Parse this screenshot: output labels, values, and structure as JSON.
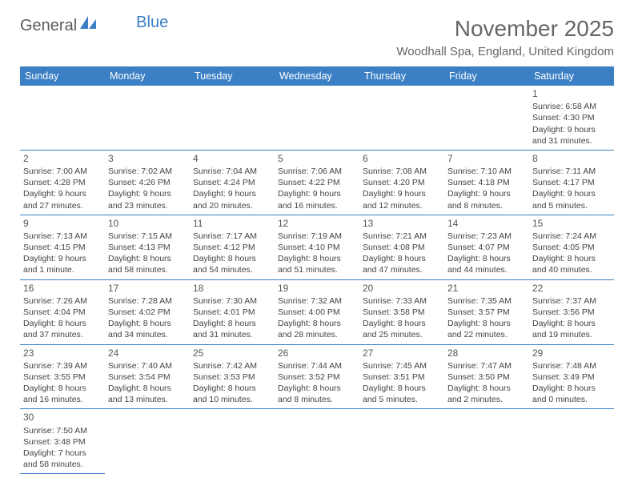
{
  "logo": {
    "text1": "General",
    "text2": "Blue"
  },
  "title": "November 2025",
  "location": "Woodhall Spa, England, United Kingdom",
  "colors": {
    "header_bg": "#3b7fc4",
    "border": "#3b7fc4"
  },
  "days_of_week": [
    "Sunday",
    "Monday",
    "Tuesday",
    "Wednesday",
    "Thursday",
    "Friday",
    "Saturday"
  ],
  "weeks": [
    [
      null,
      null,
      null,
      null,
      null,
      null,
      {
        "n": "1",
        "sunrise": "Sunrise: 6:58 AM",
        "sunset": "Sunset: 4:30 PM",
        "dl": "Daylight: 9 hours and 31 minutes."
      }
    ],
    [
      {
        "n": "2",
        "sunrise": "Sunrise: 7:00 AM",
        "sunset": "Sunset: 4:28 PM",
        "dl": "Daylight: 9 hours and 27 minutes."
      },
      {
        "n": "3",
        "sunrise": "Sunrise: 7:02 AM",
        "sunset": "Sunset: 4:26 PM",
        "dl": "Daylight: 9 hours and 23 minutes."
      },
      {
        "n": "4",
        "sunrise": "Sunrise: 7:04 AM",
        "sunset": "Sunset: 4:24 PM",
        "dl": "Daylight: 9 hours and 20 minutes."
      },
      {
        "n": "5",
        "sunrise": "Sunrise: 7:06 AM",
        "sunset": "Sunset: 4:22 PM",
        "dl": "Daylight: 9 hours and 16 minutes."
      },
      {
        "n": "6",
        "sunrise": "Sunrise: 7:08 AM",
        "sunset": "Sunset: 4:20 PM",
        "dl": "Daylight: 9 hours and 12 minutes."
      },
      {
        "n": "7",
        "sunrise": "Sunrise: 7:10 AM",
        "sunset": "Sunset: 4:18 PM",
        "dl": "Daylight: 9 hours and 8 minutes."
      },
      {
        "n": "8",
        "sunrise": "Sunrise: 7:11 AM",
        "sunset": "Sunset: 4:17 PM",
        "dl": "Daylight: 9 hours and 5 minutes."
      }
    ],
    [
      {
        "n": "9",
        "sunrise": "Sunrise: 7:13 AM",
        "sunset": "Sunset: 4:15 PM",
        "dl": "Daylight: 9 hours and 1 minute."
      },
      {
        "n": "10",
        "sunrise": "Sunrise: 7:15 AM",
        "sunset": "Sunset: 4:13 PM",
        "dl": "Daylight: 8 hours and 58 minutes."
      },
      {
        "n": "11",
        "sunrise": "Sunrise: 7:17 AM",
        "sunset": "Sunset: 4:12 PM",
        "dl": "Daylight: 8 hours and 54 minutes."
      },
      {
        "n": "12",
        "sunrise": "Sunrise: 7:19 AM",
        "sunset": "Sunset: 4:10 PM",
        "dl": "Daylight: 8 hours and 51 minutes."
      },
      {
        "n": "13",
        "sunrise": "Sunrise: 7:21 AM",
        "sunset": "Sunset: 4:08 PM",
        "dl": "Daylight: 8 hours and 47 minutes."
      },
      {
        "n": "14",
        "sunrise": "Sunrise: 7:23 AM",
        "sunset": "Sunset: 4:07 PM",
        "dl": "Daylight: 8 hours and 44 minutes."
      },
      {
        "n": "15",
        "sunrise": "Sunrise: 7:24 AM",
        "sunset": "Sunset: 4:05 PM",
        "dl": "Daylight: 8 hours and 40 minutes."
      }
    ],
    [
      {
        "n": "16",
        "sunrise": "Sunrise: 7:26 AM",
        "sunset": "Sunset: 4:04 PM",
        "dl": "Daylight: 8 hours and 37 minutes."
      },
      {
        "n": "17",
        "sunrise": "Sunrise: 7:28 AM",
        "sunset": "Sunset: 4:02 PM",
        "dl": "Daylight: 8 hours and 34 minutes."
      },
      {
        "n": "18",
        "sunrise": "Sunrise: 7:30 AM",
        "sunset": "Sunset: 4:01 PM",
        "dl": "Daylight: 8 hours and 31 minutes."
      },
      {
        "n": "19",
        "sunrise": "Sunrise: 7:32 AM",
        "sunset": "Sunset: 4:00 PM",
        "dl": "Daylight: 8 hours and 28 minutes."
      },
      {
        "n": "20",
        "sunrise": "Sunrise: 7:33 AM",
        "sunset": "Sunset: 3:58 PM",
        "dl": "Daylight: 8 hours and 25 minutes."
      },
      {
        "n": "21",
        "sunrise": "Sunrise: 7:35 AM",
        "sunset": "Sunset: 3:57 PM",
        "dl": "Daylight: 8 hours and 22 minutes."
      },
      {
        "n": "22",
        "sunrise": "Sunrise: 7:37 AM",
        "sunset": "Sunset: 3:56 PM",
        "dl": "Daylight: 8 hours and 19 minutes."
      }
    ],
    [
      {
        "n": "23",
        "sunrise": "Sunrise: 7:39 AM",
        "sunset": "Sunset: 3:55 PM",
        "dl": "Daylight: 8 hours and 16 minutes."
      },
      {
        "n": "24",
        "sunrise": "Sunrise: 7:40 AM",
        "sunset": "Sunset: 3:54 PM",
        "dl": "Daylight: 8 hours and 13 minutes."
      },
      {
        "n": "25",
        "sunrise": "Sunrise: 7:42 AM",
        "sunset": "Sunset: 3:53 PM",
        "dl": "Daylight: 8 hours and 10 minutes."
      },
      {
        "n": "26",
        "sunrise": "Sunrise: 7:44 AM",
        "sunset": "Sunset: 3:52 PM",
        "dl": "Daylight: 8 hours and 8 minutes."
      },
      {
        "n": "27",
        "sunrise": "Sunrise: 7:45 AM",
        "sunset": "Sunset: 3:51 PM",
        "dl": "Daylight: 8 hours and 5 minutes."
      },
      {
        "n": "28",
        "sunrise": "Sunrise: 7:47 AM",
        "sunset": "Sunset: 3:50 PM",
        "dl": "Daylight: 8 hours and 2 minutes."
      },
      {
        "n": "29",
        "sunrise": "Sunrise: 7:48 AM",
        "sunset": "Sunset: 3:49 PM",
        "dl": "Daylight: 8 hours and 0 minutes."
      }
    ],
    [
      {
        "n": "30",
        "sunrise": "Sunrise: 7:50 AM",
        "sunset": "Sunset: 3:48 PM",
        "dl": "Daylight: 7 hours and 58 minutes."
      },
      null,
      null,
      null,
      null,
      null,
      null
    ]
  ]
}
